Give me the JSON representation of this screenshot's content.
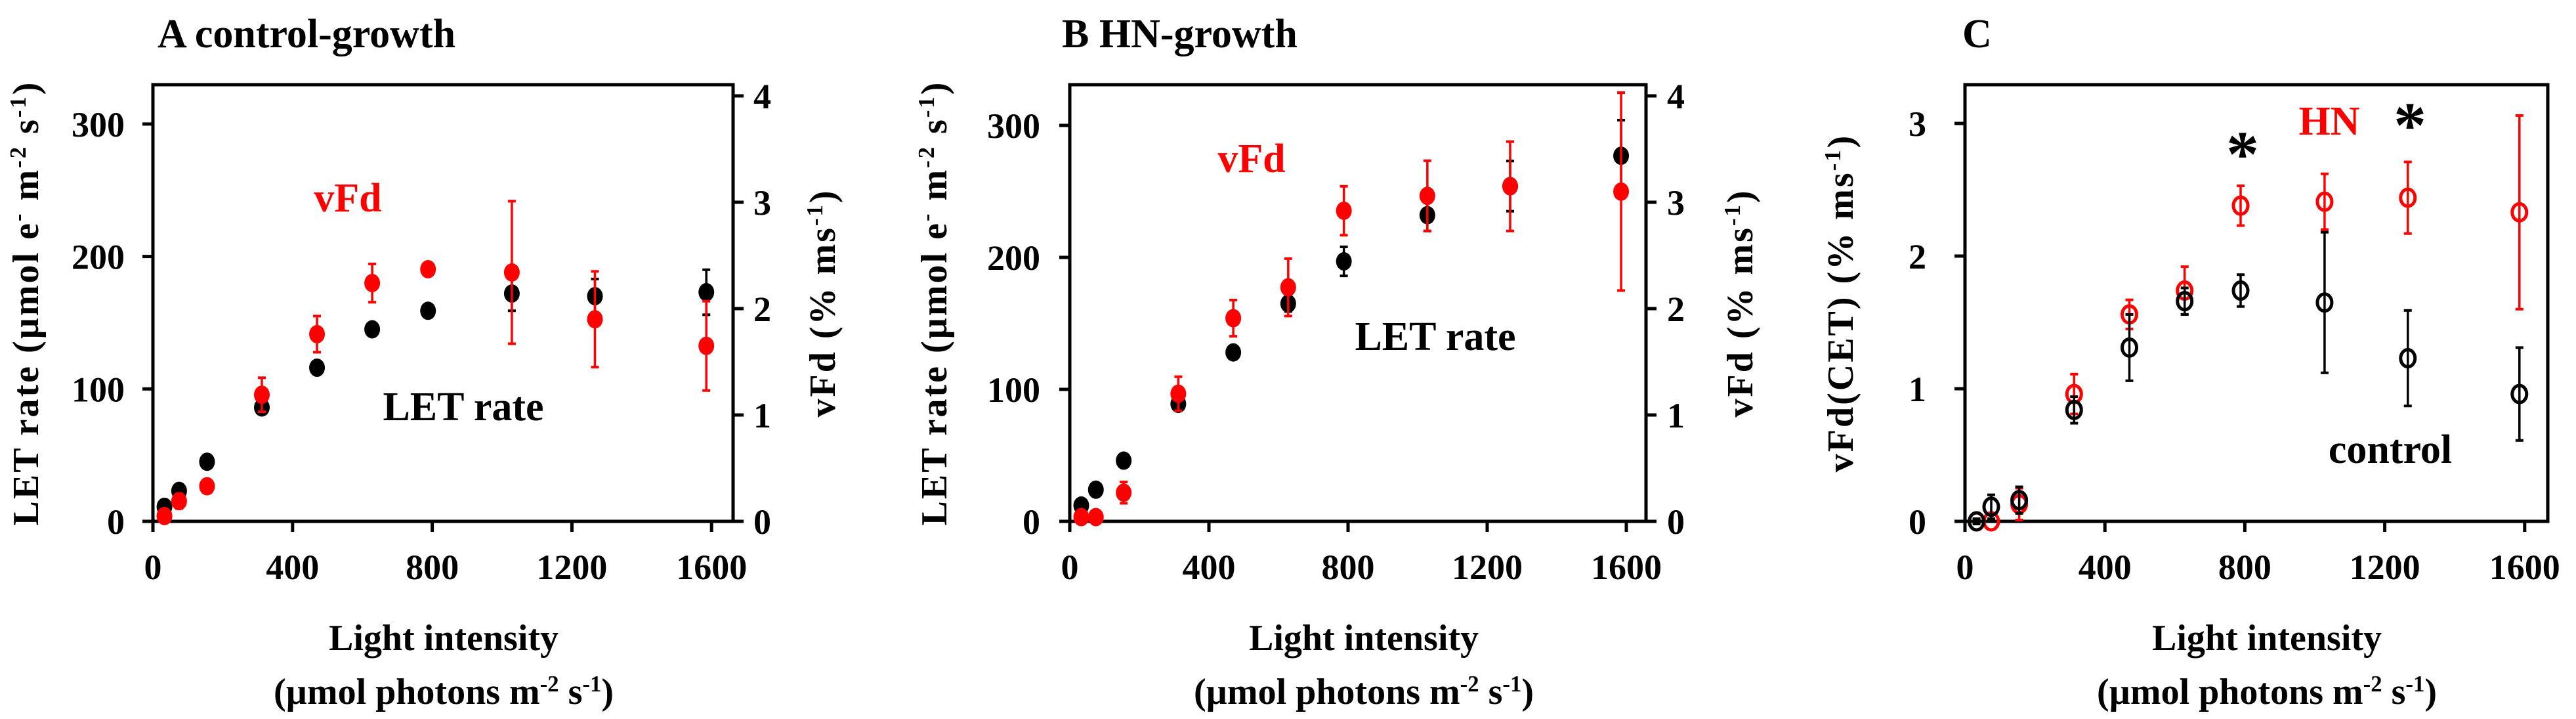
{
  "colors": {
    "control": "#000000",
    "hn": "#ff0000",
    "axis": "#000000"
  },
  "chart_data": [
    {
      "panel": "A",
      "title": "A  control-growth",
      "type": "scatter",
      "xlabel": "Light intensity",
      "xlabel_unit": [
        {
          "t": "(µmol photons m"
        },
        {
          "t": "-2",
          "sup": true
        },
        {
          "t": " s"
        },
        {
          "t": "-1",
          "sup": true
        },
        {
          "t": ")"
        }
      ],
      "ylabel_left": [
        {
          "t": "LET rate (µmol e"
        },
        {
          "t": "-",
          "sup": true
        },
        {
          "t": " m"
        },
        {
          "t": "-2",
          "sup": true
        },
        {
          "t": " s"
        },
        {
          "t": "-1",
          "sup": true
        },
        {
          "t": ")"
        }
      ],
      "ylabel_right": [
        {
          "t": "vFd (% ms"
        },
        {
          "t": "-1",
          "sup": true
        },
        {
          "t": ")"
        }
      ],
      "xlim": [
        0,
        1660
      ],
      "ylim_left": [
        0,
        330
      ],
      "ylim_right": [
        0,
        4.1
      ],
      "xticks": [
        0,
        400,
        800,
        1200,
        1600
      ],
      "yticks_left": [
        0,
        100,
        200,
        300
      ],
      "yticks_right": [
        0,
        1,
        2,
        3,
        4
      ],
      "x": [
        33,
        75,
        155,
        312,
        470,
        628,
        788,
        1028,
        1266,
        1585
      ],
      "series": [
        {
          "name": "LET rate",
          "axis": "left",
          "marker": "filled",
          "color": "#000000",
          "values": [
            11,
            23,
            45,
            86,
            116,
            145,
            159,
            172,
            170,
            173
          ],
          "errors": [
            2,
            3,
            2,
            4,
            3,
            3,
            3,
            13,
            13,
            17
          ]
        },
        {
          "name": "vFd",
          "axis": "right",
          "marker": "filled",
          "color": "#ff0000",
          "values": [
            0.05,
            0.19,
            0.33,
            1.19,
            1.76,
            2.24,
            2.37,
            2.34,
            1.9,
            1.65
          ],
          "errors": [
            0.05,
            0.07,
            0.05,
            0.16,
            0.17,
            0.18,
            0,
            0.67,
            0.45,
            0.42
          ]
        }
      ],
      "annotations": [
        {
          "text": "vFd",
          "color": "#ff0000"
        },
        {
          "text": "LET rate",
          "color": "#000000"
        }
      ]
    },
    {
      "panel": "B",
      "title": "B  HN-growth",
      "type": "scatter",
      "xlabel": "Light intensity",
      "xlabel_unit": [
        {
          "t": "(µmol photons m"
        },
        {
          "t": "-2",
          "sup": true
        },
        {
          "t": " s"
        },
        {
          "t": "-1",
          "sup": true
        },
        {
          "t": ")"
        }
      ],
      "ylabel_left": [
        {
          "t": "LET rate (µmol e"
        },
        {
          "t": "-",
          "sup": true
        },
        {
          "t": " m"
        },
        {
          "t": "-2",
          "sup": true
        },
        {
          "t": " s"
        },
        {
          "t": "-1",
          "sup": true
        },
        {
          "t": ")"
        }
      ],
      "ylabel_right": [
        {
          "t": "vFd (% ms"
        },
        {
          "t": "-1",
          "sup": true
        },
        {
          "t": ")"
        }
      ],
      "xlim": [
        0,
        1660
      ],
      "ylim_left": [
        0,
        330
      ],
      "ylim_right": [
        0,
        4.1
      ],
      "xticks": [
        0,
        400,
        800,
        1200,
        1600
      ],
      "yticks_left": [
        0,
        100,
        200,
        300
      ],
      "yticks_right": [
        0,
        1,
        2,
        3,
        4
      ],
      "x": [
        33,
        75,
        155,
        312,
        470,
        628,
        788,
        1028,
        1266,
        1585
      ],
      "series": [
        {
          "name": "LET rate",
          "axis": "left",
          "marker": "filled",
          "color": "#000000",
          "values": [
            12,
            24,
            46,
            89,
            128,
            165,
            197,
            232,
            254,
            277
          ],
          "errors": [
            2,
            2,
            2,
            3,
            3,
            6,
            11,
            12,
            19,
            27
          ]
        },
        {
          "name": "vFd",
          "axis": "right",
          "marker": "filled",
          "color": "#ff0000",
          "values": [
            0.04,
            0.04,
            0.27,
            1.2,
            1.91,
            2.2,
            2.92,
            3.06,
            3.15,
            3.1
          ],
          "errors": [
            0.02,
            0.02,
            0.1,
            0.16,
            0.17,
            0.27,
            0.23,
            0.33,
            0.42,
            0.93
          ]
        }
      ],
      "annotations": [
        {
          "text": "vFd",
          "color": "#ff0000"
        },
        {
          "text": "LET rate",
          "color": "#000000"
        }
      ]
    },
    {
      "panel": "C",
      "title": "C",
      "type": "scatter",
      "xlabel": "Light intensity",
      "xlabel_unit": [
        {
          "t": "(µmol photons m"
        },
        {
          "t": "-2",
          "sup": true
        },
        {
          "t": " s"
        },
        {
          "t": "-1",
          "sup": true
        },
        {
          "t": ")"
        }
      ],
      "ylabel_left": [
        {
          "t": "vFd(CET) (% ms"
        },
        {
          "t": "-1",
          "sup": true
        },
        {
          "t": ")"
        }
      ],
      "xlim": [
        0,
        1660
      ],
      "ylim_left": [
        0,
        3.28
      ],
      "xticks": [
        0,
        400,
        800,
        1200,
        1600
      ],
      "yticks_left": [
        0,
        1,
        2,
        3
      ],
      "x": [
        33,
        75,
        155,
        312,
        470,
        628,
        788,
        1028,
        1266,
        1585
      ],
      "series": [
        {
          "name": "HN",
          "axis": "left",
          "marker": "open",
          "color": "#ff0000",
          "values": [
            0.0,
            0.0,
            0.13,
            0.96,
            1.56,
            1.74,
            2.38,
            2.41,
            2.44,
            2.33
          ],
          "errors": [
            0,
            0,
            0.12,
            0.15,
            0.11,
            0.18,
            0.15,
            0.21,
            0.27,
            0.73
          ]
        },
        {
          "name": "control",
          "axis": "left",
          "marker": "open",
          "color": "#000000",
          "values": [
            0.0,
            0.11,
            0.16,
            0.84,
            1.31,
            1.66,
            1.74,
            1.65,
            1.23,
            0.96
          ],
          "errors": [
            0.02,
            0.09,
            0.1,
            0.1,
            0.25,
            0.1,
            0.12,
            0.53,
            0.36,
            0.35
          ]
        }
      ],
      "annotations": [
        {
          "text": "HN",
          "color": "#ff0000"
        },
        {
          "text": "control",
          "color": "#000000"
        },
        {
          "text": "*",
          "color": "#000000"
        },
        {
          "text": "*",
          "color": "#000000"
        }
      ]
    }
  ]
}
